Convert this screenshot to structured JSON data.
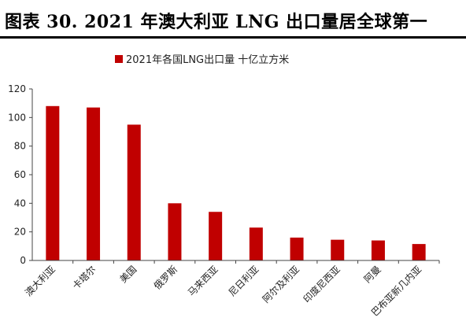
{
  "figure_title": "图表 30. 2021 年澳大利亚 LNG 出口量居全球第一",
  "colors": {
    "bar": "#C00000",
    "axis": "#444444",
    "title_rule": "#000000"
  },
  "chart_data": {
    "type": "bar",
    "title": "",
    "xlabel": "",
    "ylabel": "",
    "ylim": [
      0,
      120
    ],
    "yticks": [
      0,
      20,
      40,
      60,
      80,
      100,
      120
    ],
    "grid": false,
    "legend_position": "top-center",
    "categories": [
      "澳大利亚",
      "卡塔尔",
      "美国",
      "俄罗斯",
      "马来西亚",
      "尼日利亚",
      "阿尔及利亚",
      "印度尼西亚",
      "阿曼",
      "巴布亚新几内亚"
    ],
    "series": [
      {
        "name": "2021年各国LNG出口量 十亿立方米",
        "values": [
          108,
          107,
          95,
          40,
          34,
          23,
          16,
          14.5,
          14,
          11.5
        ]
      }
    ]
  }
}
